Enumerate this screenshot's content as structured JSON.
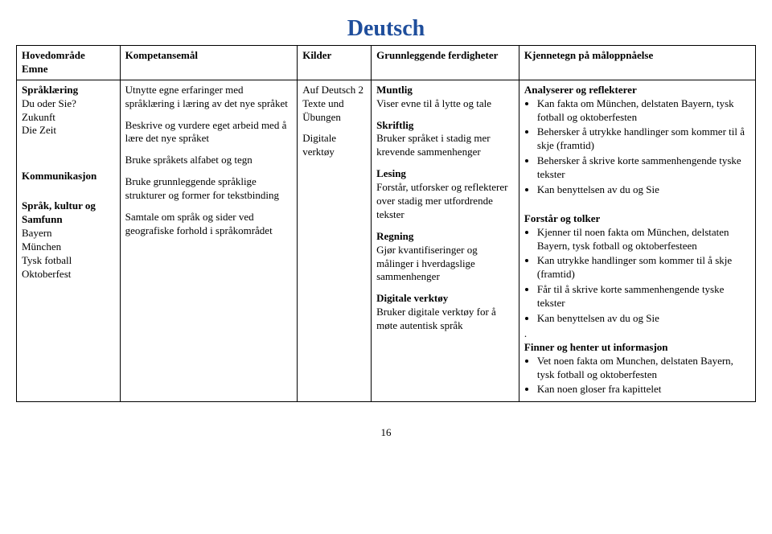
{
  "title": {
    "text": "Deutsch",
    "color": "#1f4e9c",
    "fontsize": 28
  },
  "headers": {
    "col1a": "Hovedområde",
    "col1b": "Emne",
    "col2": "Kompetansemål",
    "col3": "Kilder",
    "col4": "Grunnleggende ferdigheter",
    "col5": "Kjennetegn på måloppnåelse"
  },
  "col1": {
    "g1_h": "Språklæring",
    "g1_l1": "Du oder Sie?",
    "g1_l2": "Zukunft",
    "g1_l3": "Die Zeit",
    "g2_h": "Kommunikasjon",
    "g3_h": "Språk, kultur og Samfunn",
    "g3_l1": "Bayern",
    "g3_l2": "München",
    "g3_l3": "Tysk fotball",
    "g3_l4": "Oktoberfest"
  },
  "col2": {
    "p1": "Utnytte egne erfaringer med språklæring i læring av det nye språket",
    "p2": "Beskrive og vurdere eget arbeid med å lære det nye språket",
    "p3": "Bruke språkets alfabet og tegn",
    "p4": "Bruke grunnleggende språklige strukturer og former for tekstbinding",
    "p5": "Samtale om språk og sider ved geografiske forhold i språkområdet"
  },
  "col3": {
    "p1": "Auf Deutsch 2 Texte und Übungen",
    "p2": "Digitale verktøy"
  },
  "col4": {
    "h1": "Muntlig",
    "t1": "Viser evne til å lytte og tale",
    "h2": "Skriftlig",
    "t2": "Bruker språket i stadig mer krevende sammenhenger",
    "h3": "Lesing",
    "t3": "Forstår, utforsker og reflekterer over stadig mer utfordrende tekster",
    "h4": "Regning",
    "t4": "Gjør kvantifiseringer og målinger i hverdagslige sammenhenger",
    "h5": "Digitale verktøy",
    "t5": "Bruker digitale verktøy for å møte autentisk språk"
  },
  "col5": {
    "h1": "Analyserer og reflekterer",
    "b1": [
      "Kan fakta om München, delstaten Bayern, tysk fotball og oktoberfesten",
      "Behersker å utrykke handlinger som kommer til å skje (framtid)",
      "Behersker å skrive korte sammenhengende tyske tekster",
      "Kan benyttelsen av du og Sie"
    ],
    "h2": "Forstår og tolker",
    "b2": [
      "Kjenner til noen fakta om München, delstaten Bayern, tysk fotball og oktoberfesteen",
      "Kan utrykke handlinger som kommer til å skje (framtid)",
      "Får til å skrive korte sammenhengende tyske tekster",
      "Kan benyttelsen av du og Sie"
    ],
    "dot": ".",
    "h3": "Finner og henter ut informasjon",
    "b3": [
      "Vet noen fakta om Munchen, delstaten Bayern, tysk fotball og oktoberfesten",
      "Kan noen gloser fra kapittelet"
    ]
  },
  "page_number": "16"
}
